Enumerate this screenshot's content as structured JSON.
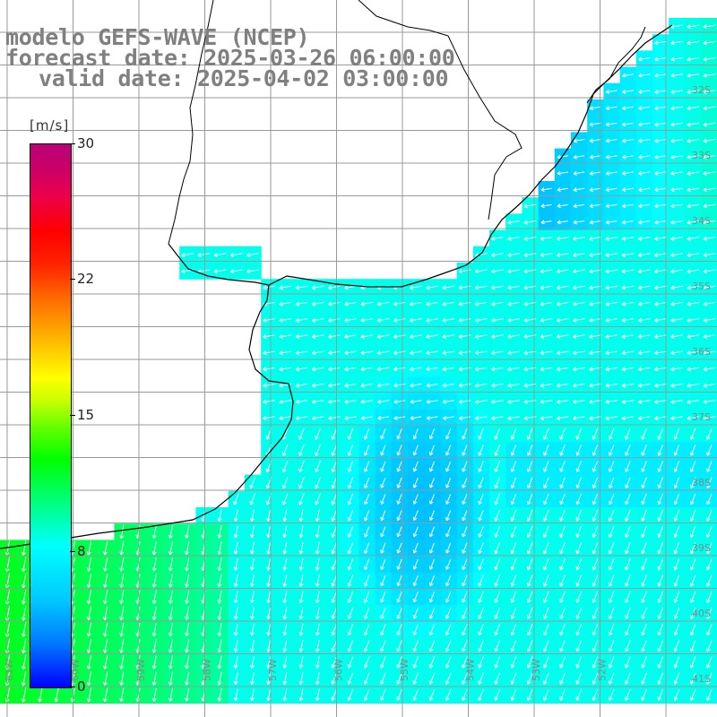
{
  "header": {
    "model": "modelo GEFS-WAVE (NCEP)",
    "forecast": "forecast date: 2025-03-26 06:00:00",
    "valid": "valid date: 2025-04-02 03:00:00"
  },
  "colorbar": {
    "unit": "[m/s]",
    "ticks": [
      "30",
      "22",
      "15",
      "8",
      "0"
    ],
    "colors": [
      "#0000ff",
      "#00ffff",
      "#00ff00",
      "#ffff00",
      "#ff0000",
      "#bb0077"
    ]
  },
  "grid": {
    "lat_labels": [
      "32S",
      "33S",
      "34S",
      "35S",
      "36S",
      "37S",
      "38S",
      "39S",
      "40S",
      "41S"
    ],
    "lon_labels": [
      "61W",
      "60W",
      "59W",
      "58W",
      "57W",
      "56W",
      "55W",
      "54W",
      "53W",
      "52W"
    ]
  },
  "colors": {
    "land": "#ffffff",
    "coast": "#000000",
    "grid": "#999999",
    "arrows": "#ffffff"
  }
}
